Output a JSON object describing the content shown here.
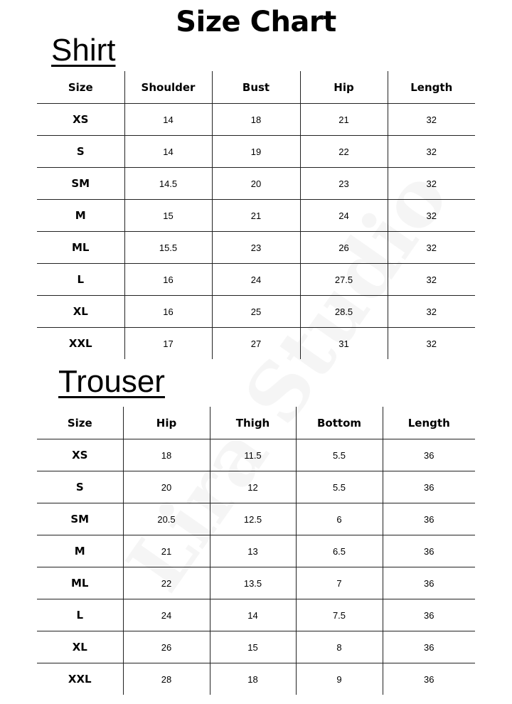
{
  "title": "Size Chart",
  "watermark": "Lira Studio",
  "shirt": {
    "heading": "Shirt",
    "columns": [
      "Size",
      "Shoulder",
      "Bust",
      "Hip",
      "Length"
    ],
    "rows": [
      [
        "XS",
        "14",
        "18",
        "21",
        "32"
      ],
      [
        "S",
        "14",
        "19",
        "22",
        "32"
      ],
      [
        "SM",
        "14.5",
        "20",
        "23",
        "32"
      ],
      [
        "M",
        "15",
        "21",
        "24",
        "32"
      ],
      [
        "ML",
        "15.5",
        "23",
        "26",
        "32"
      ],
      [
        "L",
        "16",
        "24",
        "27.5",
        "32"
      ],
      [
        "XL",
        "16",
        "25",
        "28.5",
        "32"
      ],
      [
        "XXL",
        "17",
        "27",
        "31",
        "32"
      ]
    ]
  },
  "trouser": {
    "heading": "Trouser",
    "columns": [
      "Size",
      "Hip",
      "Thigh",
      "Bottom",
      "Length"
    ],
    "rows": [
      [
        "XS",
        "18",
        "11.5",
        "5.5",
        "36"
      ],
      [
        "S",
        "20",
        "12",
        "5.5",
        "36"
      ],
      [
        "SM",
        "20.5",
        "12.5",
        "6",
        "36"
      ],
      [
        "M",
        "21",
        "13",
        "6.5",
        "36"
      ],
      [
        "ML",
        "22",
        "13.5",
        "7",
        "36"
      ],
      [
        "L",
        "24",
        "14",
        "7.5",
        "36"
      ],
      [
        "XL",
        "26",
        "15",
        "8",
        "36"
      ],
      [
        "XXL",
        "28",
        "18",
        "9",
        "36"
      ]
    ]
  }
}
